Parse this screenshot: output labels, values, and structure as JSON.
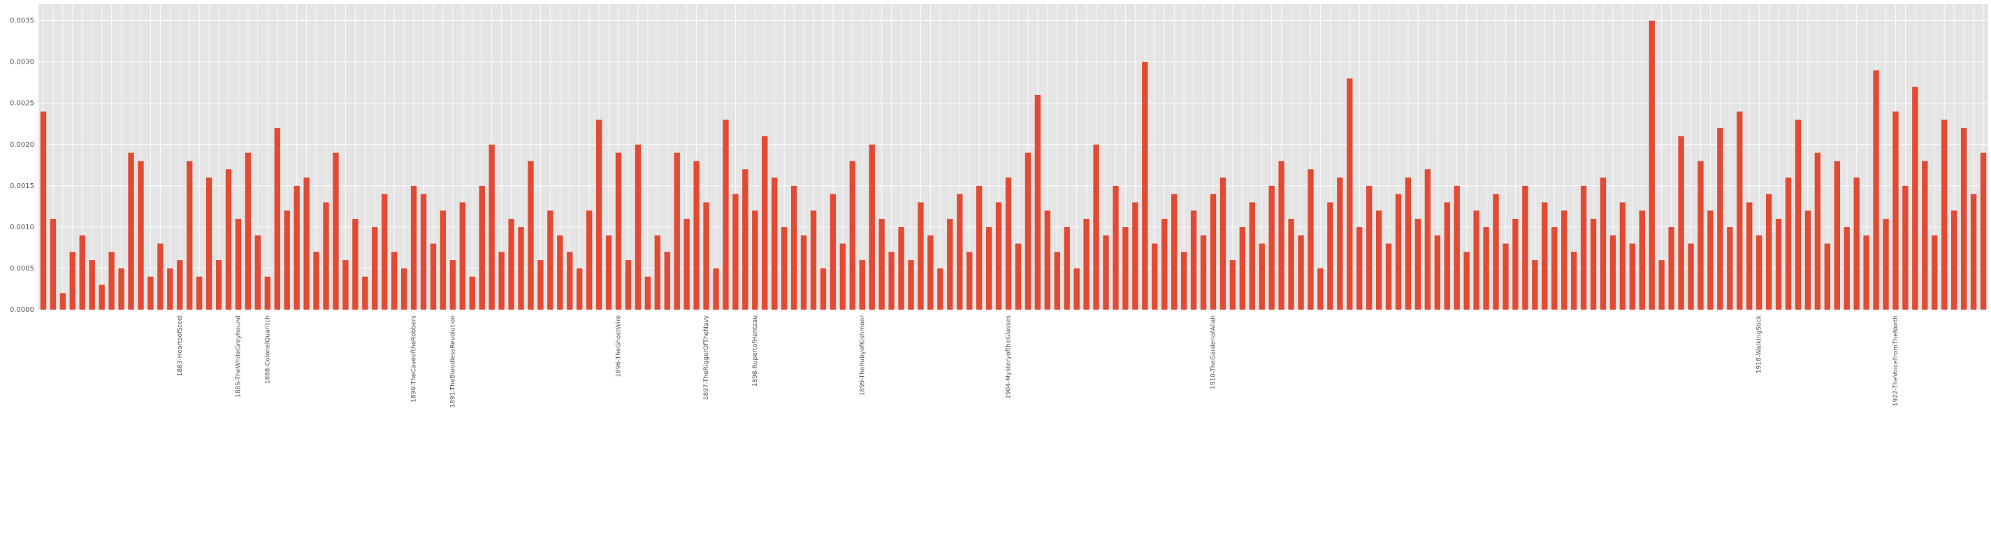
{
  "chart_data": {
    "type": "bar",
    "color": "#e24a33",
    "grid": true,
    "ylim": [
      0,
      0.0037
    ],
    "yticks": [
      {
        "value": 0,
        "label": "0.0000"
      },
      {
        "value": 0.0005,
        "label": "0.0005"
      },
      {
        "value": 0.001,
        "label": "0.0010"
      },
      {
        "value": 0.0015,
        "label": "0.0015"
      },
      {
        "value": 0.002,
        "label": "0.0020"
      },
      {
        "value": 0.0025,
        "label": "0.0025"
      },
      {
        "value": 0.003,
        "label": "0.0030"
      },
      {
        "value": 0.0035,
        "label": "0.0035"
      }
    ],
    "categories": [
      null,
      null,
      null,
      null,
      null,
      null,
      null,
      null,
      null,
      null,
      null,
      null,
      null,
      null,
      "1883-HeartsofSteel",
      null,
      null,
      null,
      null,
      null,
      "1885-TheWhiteGreyhound",
      null,
      null,
      "1888-ColonelQuaritch",
      null,
      null,
      null,
      null,
      null,
      null,
      null,
      null,
      null,
      null,
      null,
      null,
      null,
      null,
      "1890-TheCaveoftheRobbers",
      null,
      null,
      null,
      "1891-TheBloodlessRevolution",
      null,
      null,
      null,
      null,
      null,
      null,
      null,
      null,
      null,
      null,
      null,
      null,
      null,
      null,
      null,
      null,
      "1896-TheGhostWire",
      null,
      null,
      null,
      null,
      null,
      null,
      null,
      null,
      "1897-TheRiggerOfTheNavy",
      null,
      null,
      null,
      null,
      "1898-RupertofHentzau",
      null,
      null,
      null,
      null,
      null,
      null,
      null,
      null,
      null,
      null,
      "1899-TheRubyofKishmoor",
      null,
      null,
      null,
      null,
      null,
      null,
      null,
      null,
      null,
      null,
      null,
      null,
      null,
      null,
      "1904-MysteryoftheGlasses",
      null,
      null,
      null,
      null,
      null,
      null,
      null,
      null,
      null,
      null,
      null,
      null,
      null,
      null,
      null,
      null,
      null,
      null,
      null,
      null,
      "1910-TheGardenofAllah",
      null,
      null,
      null,
      null,
      null,
      null,
      null,
      null,
      null,
      null,
      null,
      null,
      null,
      null,
      null,
      null,
      null,
      null,
      null,
      null,
      null,
      null,
      null,
      null,
      null,
      null,
      null,
      null,
      null,
      null,
      null,
      null,
      null,
      null,
      null,
      null,
      null,
      null,
      null,
      null,
      null,
      null,
      null,
      null,
      null,
      null,
      null,
      null,
      null,
      null,
      null,
      null,
      null,
      null,
      null,
      "1918-WalkingStick",
      null,
      null,
      null,
      null,
      null,
      null,
      null,
      null,
      null,
      null,
      null,
      null,
      null,
      "1922-TheVoiceFromTheNorth",
      null,
      null,
      null,
      null,
      null,
      null,
      null,
      null,
      null
    ],
    "values": [
      0.0024,
      0.0011,
      0.0002,
      0.0007,
      0.0009,
      0.0006,
      0.0003,
      0.0007,
      0.0005,
      0.0019,
      0.0018,
      0.0004,
      0.0008,
      0.0005,
      0.0006,
      0.0018,
      0.0004,
      0.0016,
      0.0006,
      0.0017,
      0.0011,
      0.0019,
      0.0009,
      0.0004,
      0.0022,
      0.0012,
      0.0015,
      0.0016,
      0.0007,
      0.0013,
      0.0019,
      0.0006,
      0.0011,
      0.0004,
      0.001,
      0.0014,
      0.0007,
      0.0005,
      0.0015,
      0.0014,
      0.0008,
      0.0012,
      0.0006,
      0.0013,
      0.0004,
      0.0015,
      0.002,
      0.0007,
      0.0011,
      0.001,
      0.0018,
      0.0006,
      0.0012,
      0.0009,
      0.0007,
      0.0005,
      0.0012,
      0.0023,
      0.0009,
      0.0019,
      0.0006,
      0.002,
      0.0004,
      0.0009,
      0.0007,
      0.0019,
      0.0011,
      0.0018,
      0.0013,
      0.0005,
      0.0023,
      0.0014,
      0.0017,
      0.0012,
      0.0021,
      0.0016,
      0.001,
      0.0015,
      0.0009,
      0.0012,
      0.0005,
      0.0014,
      0.0008,
      0.0018,
      0.0006,
      0.002,
      0.0011,
      0.0007,
      0.001,
      0.0006,
      0.0013,
      0.0009,
      0.0005,
      0.0011,
      0.0014,
      0.0007,
      0.0015,
      0.001,
      0.0013,
      0.0016,
      0.0008,
      0.0019,
      0.0026,
      0.0012,
      0.0007,
      0.001,
      0.0005,
      0.0011,
      0.002,
      0.0009,
      0.0015,
      0.001,
      0.0013,
      0.003,
      0.0008,
      0.0011,
      0.0014,
      0.0007,
      0.0012,
      0.0009,
      0.0014,
      0.0016,
      0.0006,
      0.001,
      0.0013,
      0.0008,
      0.0015,
      0.0018,
      0.0011,
      0.0009,
      0.0017,
      0.0005,
      0.0013,
      0.0016,
      0.0028,
      0.001,
      0.0015,
      0.0012,
      0.0008,
      0.0014,
      0.0016,
      0.0011,
      0.0017,
      0.0009,
      0.0013,
      0.0015,
      0.0007,
      0.0012,
      0.001,
      0.0014,
      0.0008,
      0.0011,
      0.0015,
      0.0006,
      0.0013,
      0.001,
      0.0012,
      0.0007,
      0.0015,
      0.0011,
      0.0016,
      0.0009,
      0.0013,
      0.0008,
      0.0012,
      0.0035,
      0.0006,
      0.001,
      0.0021,
      0.0008,
      0.0018,
      0.0012,
      0.0022,
      0.001,
      0.0024,
      0.0013,
      0.0009,
      0.0014,
      0.0011,
      0.0016,
      0.0023,
      0.0012,
      0.0019,
      0.0008,
      0.0018,
      0.001,
      0.0016,
      0.0009,
      0.0029,
      0.0011,
      0.0024,
      0.0015,
      0.0027,
      0.0018,
      0.0009,
      0.0023,
      0.0012,
      0.0022,
      0.0014,
      0.0019
    ]
  }
}
